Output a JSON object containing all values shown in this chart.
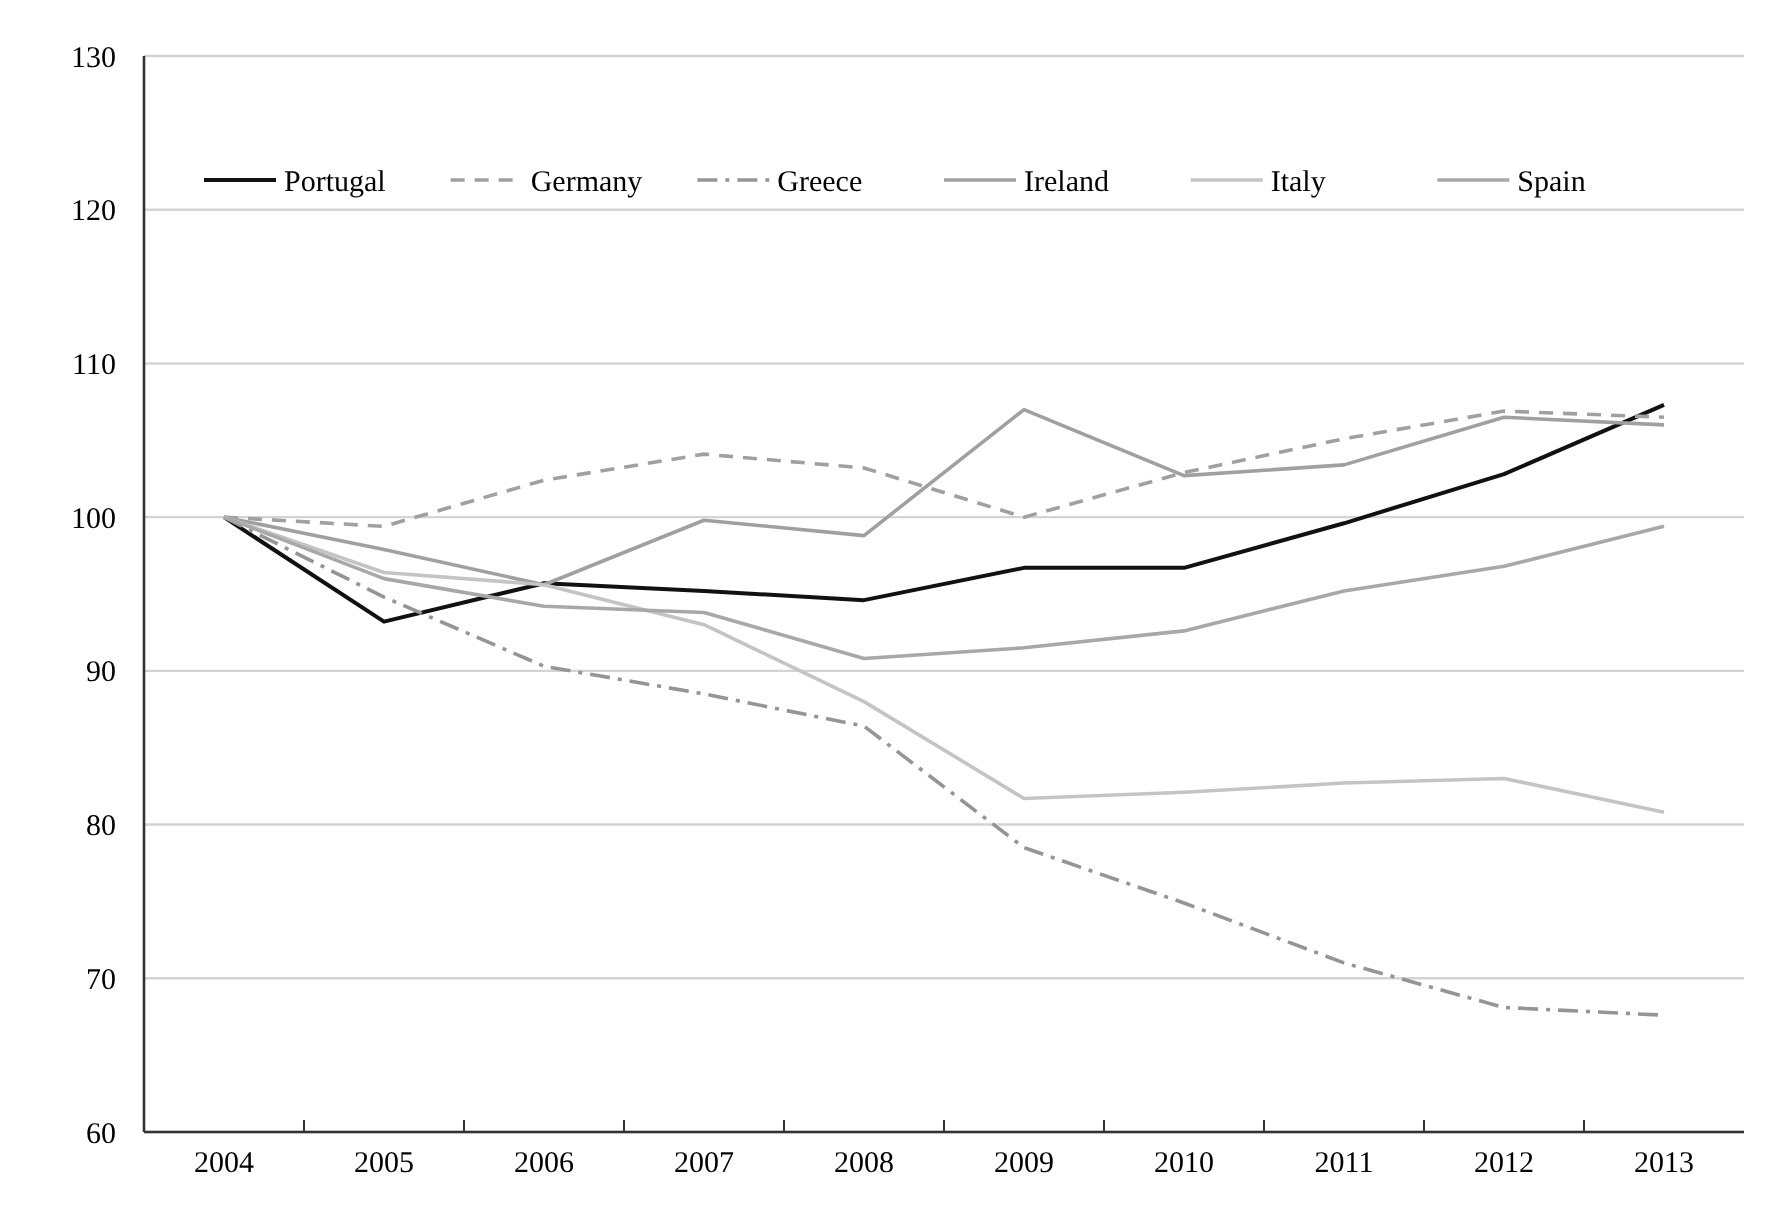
{
  "chart_data": {
    "type": "line",
    "categories": [
      "2004",
      "2005",
      "2006",
      "2007",
      "2008",
      "2009",
      "2010",
      "2011",
      "2012",
      "2013"
    ],
    "ylim": [
      60,
      130
    ],
    "yticks": [
      60,
      70,
      80,
      90,
      100,
      110,
      120,
      130
    ],
    "grid": "y",
    "legend": "top",
    "marker": "none",
    "series": [
      {
        "name": "Portugal",
        "color": "#111111",
        "line_style": "solid",
        "values": [
          100,
          93.2,
          95.7,
          95.2,
          94.6,
          96.7,
          96.7,
          99.6,
          102.8,
          107.3
        ]
      },
      {
        "name": "Germany",
        "color": "#a0a0a0",
        "line_style": "dashed",
        "values": [
          100,
          99.4,
          102.4,
          104.1,
          103.2,
          100.0,
          102.9,
          105.1,
          106.9,
          106.5
        ]
      },
      {
        "name": "Greece",
        "color": "#959595",
        "line_style": "dashdot",
        "values": [
          100,
          94.8,
          90.3,
          88.5,
          86.4,
          78.5,
          74.9,
          71.0,
          68.1,
          67.6
        ]
      },
      {
        "name": "Ireland",
        "color": "#a0a0a0",
        "line_style": "solid",
        "values": [
          100,
          97.9,
          95.6,
          99.8,
          98.8,
          107.0,
          102.7,
          103.4,
          106.5,
          106.0
        ]
      },
      {
        "name": "Italy",
        "color": "#c4c4c4",
        "line_style": "solid",
        "values": [
          100,
          96.4,
          95.6,
          93.0,
          88.0,
          81.7,
          82.1,
          82.7,
          83.0,
          80.8
        ]
      },
      {
        "name": "Spain",
        "color": "#a8a8a8",
        "line_style": "solid",
        "values": [
          100,
          96.0,
          94.2,
          93.8,
          90.8,
          91.5,
          92.6,
          95.2,
          96.8,
          99.4
        ]
      }
    ]
  }
}
